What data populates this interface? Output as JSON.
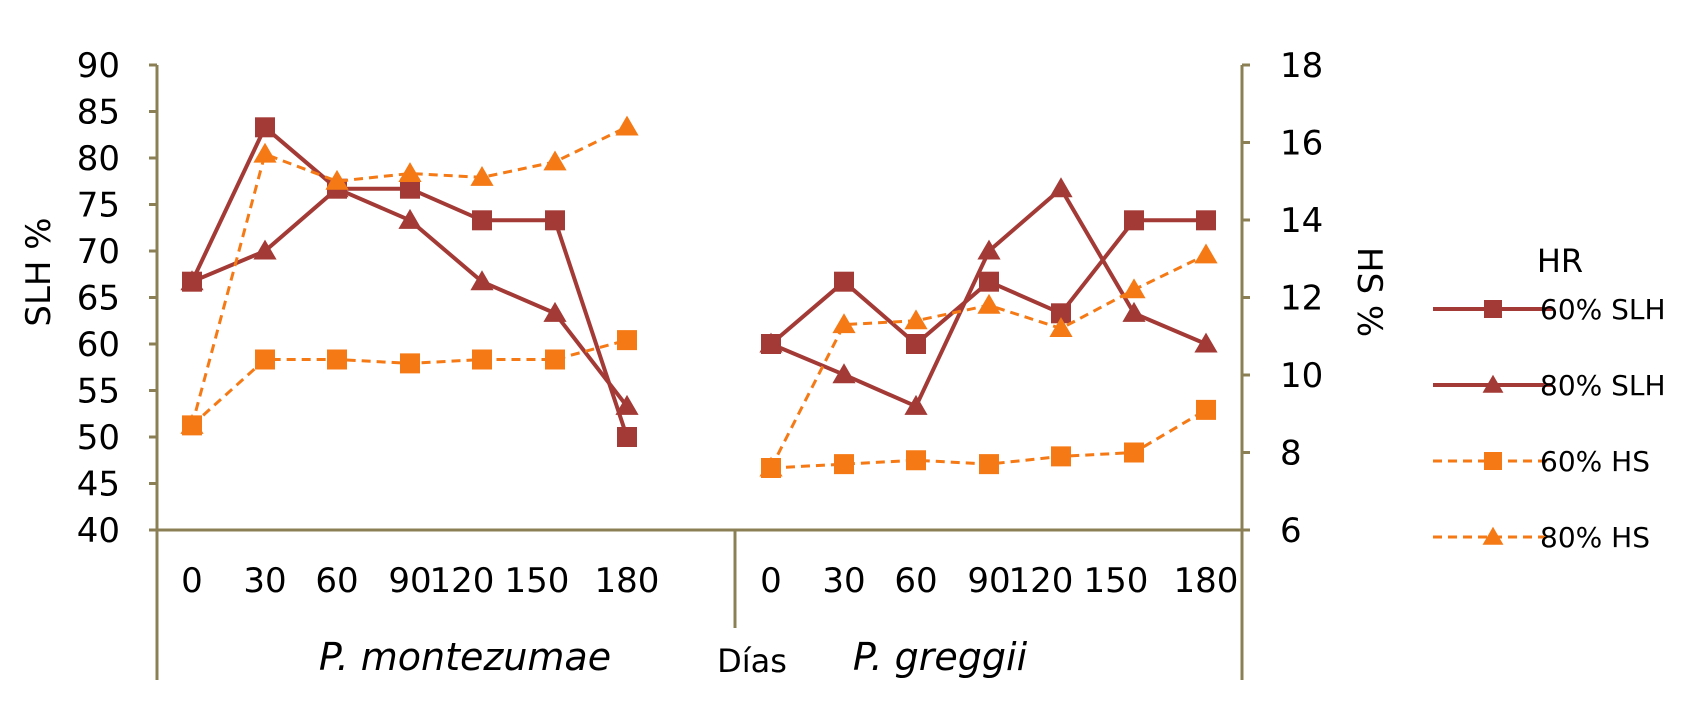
{
  "chart_data": {
    "type": "line",
    "x_ticks": [
      "0",
      "30",
      "60",
      "90",
      "120",
      "150",
      "180"
    ],
    "groups": [
      {
        "label": "P. montezumae"
      },
      {
        "label": "P. greggii"
      }
    ],
    "xlabel": "Días",
    "ylabel_left": "SLH %",
    "ylabel_right": "HS %",
    "ylim_left": [
      40,
      90
    ],
    "yticks_left": [
      40,
      45,
      50,
      55,
      60,
      65,
      70,
      75,
      80,
      85,
      90
    ],
    "ylim_right": [
      6,
      18
    ],
    "yticks_right": [
      6,
      8,
      10,
      12,
      14,
      16,
      18
    ],
    "legend_title": "HR",
    "legend_position": "right",
    "colors": {
      "slh": "#A33A36",
      "hs": "#F57A15",
      "axis": "#8B8055"
    },
    "series": [
      {
        "name": "60% SLH",
        "axis": "left",
        "marker": "square",
        "dashed": false,
        "color": "#A33A36",
        "values": [
          [
            66.7,
            83.3,
            76.7,
            76.7,
            73.3,
            73.3,
            50.0
          ],
          [
            60.0,
            66.7,
            60.0,
            66.7,
            63.3,
            73.3,
            73.3
          ]
        ]
      },
      {
        "name": "80% SLH",
        "axis": "left",
        "marker": "triangle",
        "dashed": false,
        "color": "#A33A36",
        "values": [
          [
            66.7,
            70.0,
            76.7,
            73.3,
            66.7,
            63.3,
            53.3
          ],
          [
            60.0,
            56.7,
            53.3,
            70.0,
            76.7,
            63.3,
            60.0
          ]
        ]
      },
      {
        "name": "60% HS",
        "axis": "right",
        "marker": "square",
        "dashed": true,
        "color": "#F57A15",
        "values": [
          [
            8.7,
            10.4,
            10.4,
            10.3,
            10.4,
            10.4,
            10.9
          ],
          [
            7.6,
            7.7,
            7.8,
            7.7,
            7.9,
            8.0,
            9.1
          ]
        ]
      },
      {
        "name": "80% HS",
        "axis": "right",
        "marker": "triangle",
        "dashed": true,
        "color": "#F57A15",
        "values": [
          [
            8.7,
            15.7,
            15.0,
            15.2,
            15.1,
            15.5,
            16.4
          ],
          [
            7.6,
            11.3,
            11.4,
            11.8,
            11.2,
            12.2,
            13.1
          ]
        ]
      }
    ]
  }
}
